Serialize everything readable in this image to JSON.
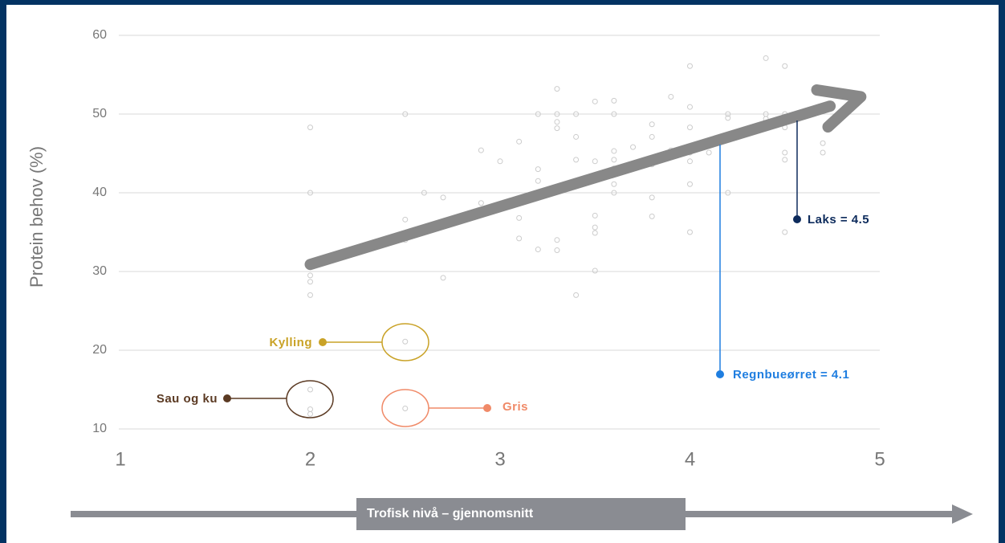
{
  "chart_data": {
    "type": "scatter",
    "y_label": "Protein behov (%)",
    "x_label": "Trofisk nivå – gjennomsnitt",
    "xlim": [
      1,
      5
    ],
    "xticks": [
      1,
      2,
      3,
      4,
      5
    ],
    "ylim": [
      10,
      60
    ],
    "yticks": [
      10,
      20,
      30,
      40,
      50,
      60
    ],
    "grid": true,
    "color": "#cccccc",
    "x": [
      2,
      2,
      2,
      2,
      2,
      2.5,
      2.5,
      2.5,
      2.6,
      2.7,
      2.7,
      2.9,
      2.9,
      3.0,
      3.1,
      3.1,
      3.1,
      3.2,
      3.2,
      3.2,
      3.2,
      3.3,
      3.3,
      3.3,
      3.3,
      3.3,
      3.3,
      3.3,
      3.4,
      3.4,
      3.4,
      3.4,
      3.4,
      3.5,
      3.5,
      3.5,
      3.5,
      3.5,
      3.5,
      3.6,
      3.6,
      3.6,
      3.6,
      3.6,
      3.6,
      3.6,
      3.6,
      3.7,
      3.8,
      3.8,
      3.8,
      3.8,
      3.8,
      3.9,
      3.9,
      4,
      4,
      4,
      4,
      4,
      4,
      4,
      4.1,
      4.2,
      4.2,
      4.2,
      4.4,
      4.4,
      4.4,
      4.5,
      4.5,
      4.5,
      4.5,
      4.5,
      4.5,
      4.7,
      4.7,
      2.5,
      2,
      2,
      2,
      2.5
    ],
    "values": [
      48.3,
      40,
      29.5,
      28.7,
      27,
      50,
      36.6,
      34,
      40,
      39.4,
      29.2,
      45.4,
      38.7,
      44,
      46.5,
      36.8,
      34.2,
      50,
      43,
      41.5,
      32.8,
      53.2,
      50,
      49,
      48.2,
      40.5,
      34,
      32.7,
      50,
      47.1,
      44.2,
      41.1,
      27,
      51.6,
      44,
      37.1,
      35.6,
      34.9,
      30.1,
      51.7,
      50,
      45.3,
      44.2,
      43.1,
      42.6,
      41.1,
      40,
      45.8,
      48.7,
      47.1,
      43.6,
      39.4,
      37,
      52.2,
      45.4,
      56.1,
      50.9,
      48.3,
      45.1,
      44,
      41.1,
      35,
      45.1,
      50,
      49.5,
      40,
      57.1,
      50,
      49.4,
      56.1,
      50,
      48.3,
      45.1,
      44.2,
      35,
      46.3,
      45.1,
      21.1,
      15,
      12.5,
      11.9,
      12.6
    ],
    "trend_arrow": {
      "x": [
        2,
        4.9
      ],
      "y": [
        30.9,
        52.2
      ],
      "color": "#888888"
    },
    "annotations": [
      {
        "text": "Laks = 4.5",
        "color": "#0d2b5c"
      },
      {
        "text": "Regnbueørret = 4.1",
        "color": "#1f7ee0"
      },
      {
        "text": "Kylling",
        "color": "#c9a227"
      },
      {
        "text": "Sau og ku",
        "color": "#5b3a23"
      },
      {
        "text": "Gris",
        "color": "#f08a68"
      }
    ]
  }
}
